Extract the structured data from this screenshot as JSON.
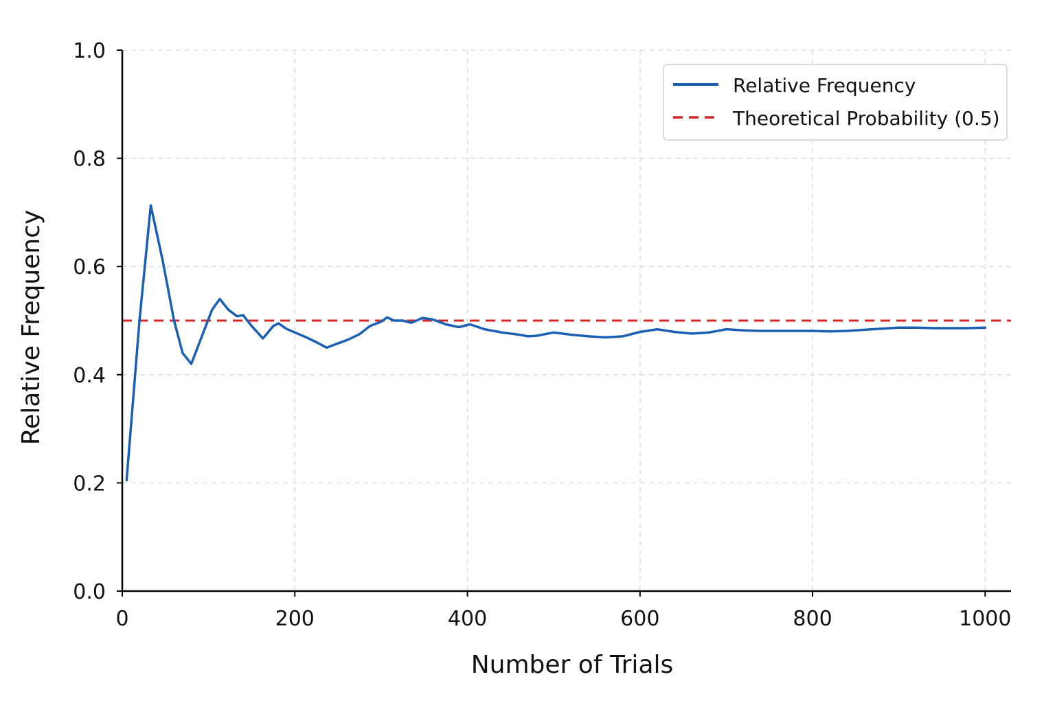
{
  "chart_data": {
    "type": "line",
    "title": "",
    "xlabel": "Number of Trials",
    "ylabel": "Relative Frequency",
    "xlim": [
      0,
      1030
    ],
    "ylim": [
      0,
      1.0
    ],
    "x_ticks": [
      0,
      200,
      400,
      600,
      800,
      1000
    ],
    "x_tick_labels": [
      "0",
      "200",
      "400",
      "600",
      "800",
      "1000"
    ],
    "y_ticks": [
      0,
      0.2,
      0.4,
      0.6,
      0.8,
      1.0
    ],
    "y_tick_labels": [
      "0.0",
      "0.2",
      "0.4",
      "0.6",
      "0.8",
      "1.0"
    ],
    "grid": true,
    "legend_position": "top-right",
    "series": [
      {
        "name": "Relative Frequency",
        "color": "#1a5fb4",
        "style": "solid",
        "x": [
          5,
          20,
          33,
          47,
          60,
          70,
          80,
          92,
          104,
          113,
          123,
          133,
          140,
          150,
          163,
          175,
          181,
          190,
          200,
          212,
          225,
          237,
          250,
          262,
          275,
          287,
          300,
          307,
          315,
          325,
          335,
          348,
          360,
          375,
          390,
          403,
          420,
          440,
          460,
          470,
          480,
          500,
          520,
          540,
          560,
          580,
          600,
          620,
          640,
          660,
          680,
          700,
          720,
          740,
          760,
          780,
          800,
          820,
          840,
          860,
          880,
          900,
          920,
          940,
          960,
          980,
          1000
        ],
        "y": [
          0.205,
          0.5,
          0.713,
          0.61,
          0.5,
          0.44,
          0.42,
          0.47,
          0.52,
          0.54,
          0.52,
          0.508,
          0.51,
          0.49,
          0.467,
          0.49,
          0.495,
          0.485,
          0.478,
          0.47,
          0.46,
          0.45,
          0.458,
          0.465,
          0.475,
          0.49,
          0.498,
          0.506,
          0.5,
          0.5,
          0.496,
          0.505,
          0.502,
          0.493,
          0.488,
          0.493,
          0.484,
          0.478,
          0.474,
          0.471,
          0.472,
          0.478,
          0.474,
          0.471,
          0.469,
          0.471,
          0.479,
          0.484,
          0.479,
          0.476,
          0.478,
          0.484,
          0.482,
          0.481,
          0.481,
          0.481,
          0.481,
          0.48,
          0.481,
          0.483,
          0.485,
          0.487,
          0.487,
          0.486,
          0.486,
          0.486,
          0.487
        ]
      },
      {
        "name": "Theoretical Probability (0.5)",
        "color": "#d62728",
        "style": "dashed",
        "x": [
          0,
          1030
        ],
        "y": [
          0.5,
          0.5
        ]
      }
    ]
  }
}
